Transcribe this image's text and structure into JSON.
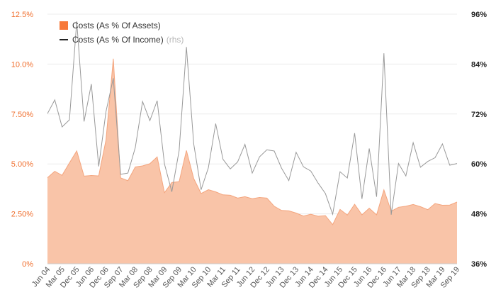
{
  "colors": {
    "area_fill": "#f9c4a8",
    "area_swatch": "#f7793a",
    "line": "#999999",
    "line_swatch": "#222222",
    "left_axis_text": "#f07030",
    "right_axis_text": "#222222",
    "grid": "#ececec",
    "x_axis_text": "#555555"
  },
  "legend": {
    "area_label": "Costs (As % Of Assets)",
    "line_label": "Costs (As % Of Income)",
    "line_suffix": "(rhs)"
  },
  "chart_data": {
    "type": "area",
    "title": "",
    "grid": true,
    "legend_position": "top-left",
    "x_tick_labels": [
      "Jun 04",
      "Mar 05",
      "Dec 05",
      "Jun 06",
      "Dec 06",
      "Sep 07",
      "Mar 08",
      "Sep 08",
      "Mar 09",
      "Sep 09",
      "Mar 10",
      "Sep 10",
      "Mar 11",
      "Sep 11",
      "Jun 12",
      "Dec 12",
      "Jun 13",
      "Dec 13",
      "Jun 14",
      "Dec 14",
      "Jun 15",
      "Dec 15",
      "Jun 16",
      "Dec 16",
      "Jun 17",
      "Mar 18",
      "Sep 18",
      "Mar 19",
      "Sep 19"
    ],
    "y_left": {
      "min": 0,
      "max": 12.5,
      "ticks": [
        "0%",
        "2.50%",
        "5.00%",
        "7.50%",
        "10.0%",
        "12.5%"
      ]
    },
    "y_right": {
      "min": 36,
      "max": 96,
      "ticks": [
        "36%",
        "48%",
        "60%",
        "72%",
        "84%",
        "96%"
      ]
    },
    "series": [
      {
        "name": "Costs (As % Of Assets)",
        "axis": "left",
        "values": [
          4.31,
          4.63,
          4.43,
          5.05,
          5.65,
          4.39,
          4.42,
          4.4,
          6.2,
          10.27,
          4.3,
          4.16,
          4.85,
          4.9,
          5.01,
          5.35,
          3.56,
          4.07,
          4.11,
          5.67,
          4.27,
          3.52,
          3.71,
          3.6,
          3.45,
          3.43,
          3.29,
          3.36,
          3.26,
          3.32,
          3.29,
          2.88,
          2.67,
          2.65,
          2.54,
          2.39,
          2.48,
          2.38,
          2.41,
          1.96,
          2.72,
          2.44,
          2.98,
          2.45,
          2.78,
          2.45,
          3.7,
          2.63,
          2.83,
          2.88,
          2.97,
          2.86,
          2.71,
          3.02,
          2.93,
          2.94,
          3.09
        ]
      },
      {
        "name": "Costs (As % Of Income)",
        "axis": "right",
        "values": [
          72.1,
          75.4,
          68.9,
          70.6,
          94.3,
          70.2,
          79.2,
          59.4,
          72.6,
          80.6,
          57.5,
          57.8,
          63.9,
          75.0,
          70.4,
          75.2,
          60.0,
          53.3,
          63.2,
          88.1,
          64.8,
          53.8,
          59.1,
          69.7,
          61.1,
          58.8,
          60.5,
          64.7,
          57.8,
          61.7,
          63.4,
          63.1,
          59.0,
          56.0,
          62.8,
          59.3,
          58.3,
          55.4,
          52.9,
          47.9,
          58.1,
          56.6,
          67.4,
          51.6,
          63.7,
          52.1,
          86.6,
          47.8,
          60.1,
          57.1,
          65.1,
          59.2,
          60.6,
          61.5,
          64.8,
          59.7,
          60.1
        ]
      }
    ]
  }
}
